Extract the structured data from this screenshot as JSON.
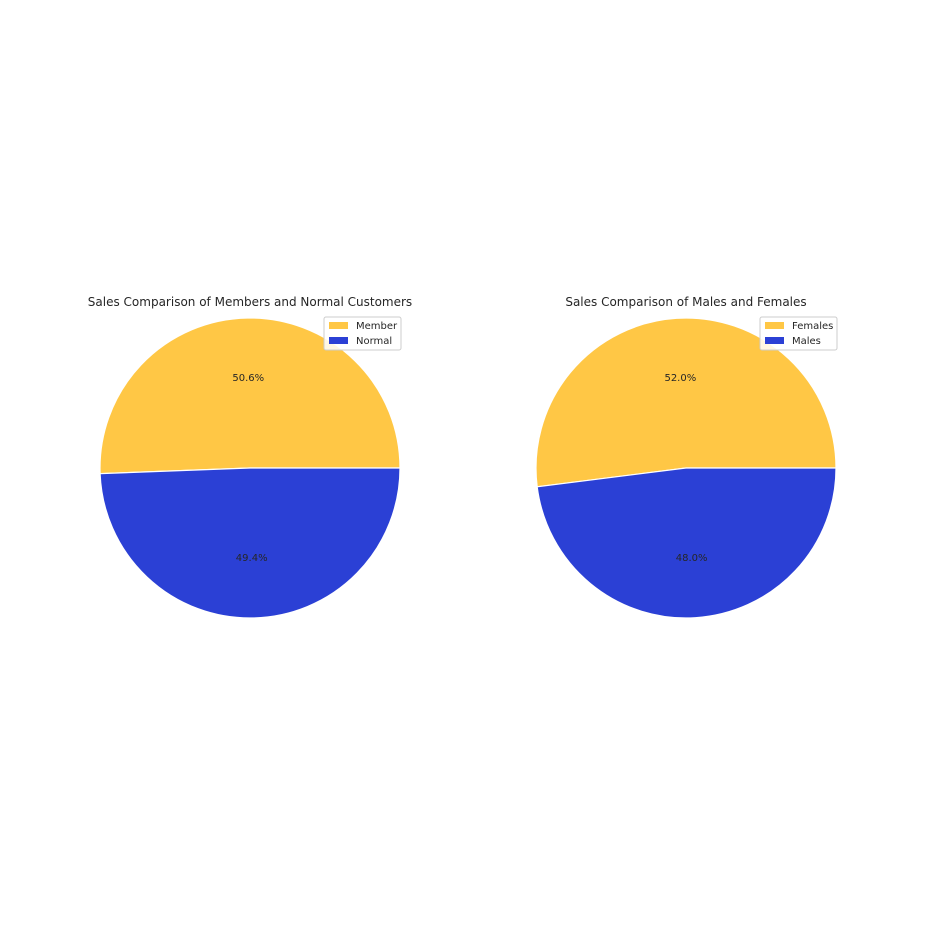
{
  "chart_data": [
    {
      "type": "pie",
      "title": "Sales Comparison of Members and Normal Customers",
      "labels": [
        "Member",
        "Normal"
      ],
      "values": [
        50.6,
        49.4
      ],
      "value_labels": [
        "50.6%",
        "49.4%"
      ],
      "colors": [
        "#ffc745",
        "#2b40d5"
      ],
      "start_angle_deg": 0,
      "direction": "counterclockwise",
      "legend_position": "upper-right"
    },
    {
      "type": "pie",
      "title": "Sales Comparison of Males and Females",
      "labels": [
        "Females",
        "Males"
      ],
      "values": [
        52.0,
        48.0
      ],
      "value_labels": [
        "52.0%",
        "48.0%"
      ],
      "colors": [
        "#ffc745",
        "#2b40d5"
      ],
      "start_angle_deg": 0,
      "direction": "counterclockwise",
      "legend_position": "upper-right"
    }
  ]
}
